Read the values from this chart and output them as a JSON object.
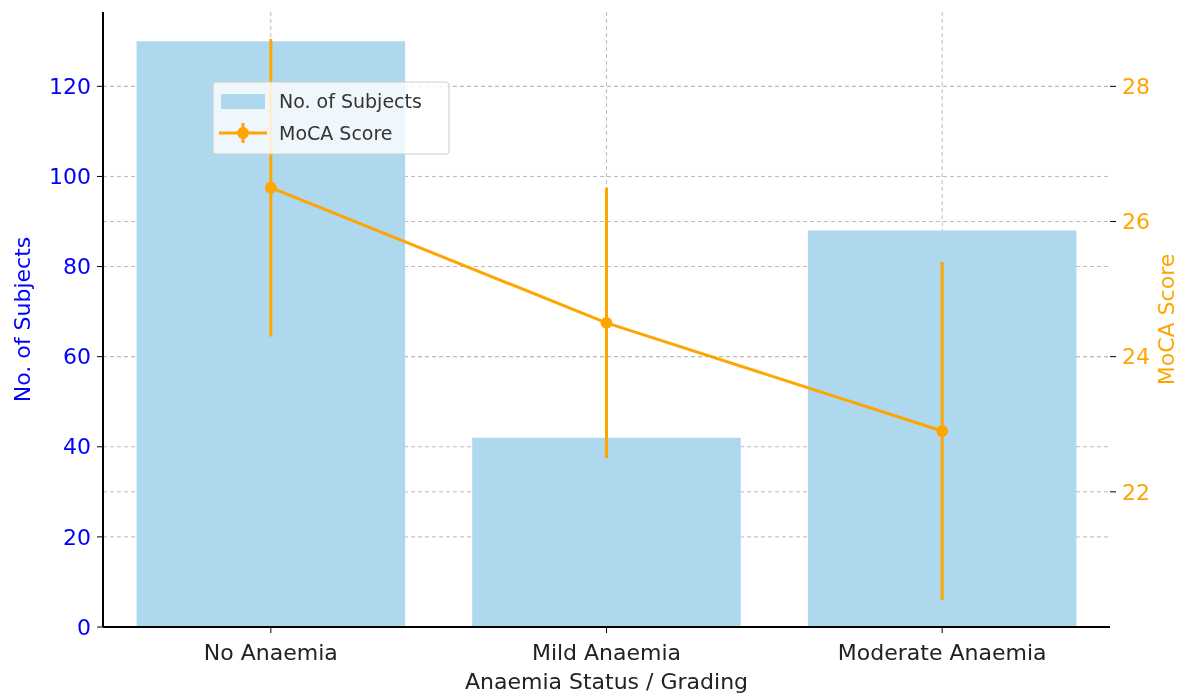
{
  "chart_data": {
    "type": "bar",
    "xlabel": "Anaemia Status / Grading",
    "ylabel": "No. of Subjects",
    "y2label": "MoCA Score",
    "categories": [
      "No Anaemia",
      "Mild Anaemia",
      "Moderate Anaemia"
    ],
    "series": [
      {
        "name": "No. of Subjects",
        "color": "#add8ee",
        "values": [
          130,
          42,
          88
        ]
      },
      {
        "name": "MoCA Score",
        "type": "line",
        "axis": "y2",
        "color": "#ffa500",
        "values": [
          26.5,
          24.5,
          22.9
        ],
        "errors": [
          2.2,
          2.0,
          2.5
        ]
      }
    ],
    "ylim": [
      0,
      136.5
    ],
    "yticks": [
      0,
      20,
      40,
      60,
      80,
      100,
      120
    ],
    "y2lim": [
      20.0,
      29.1
    ],
    "y2ticks": [
      22,
      24,
      26,
      28
    ],
    "grid": true,
    "legend": "top left",
    "marker": "circle",
    "line_style": "solid"
  }
}
